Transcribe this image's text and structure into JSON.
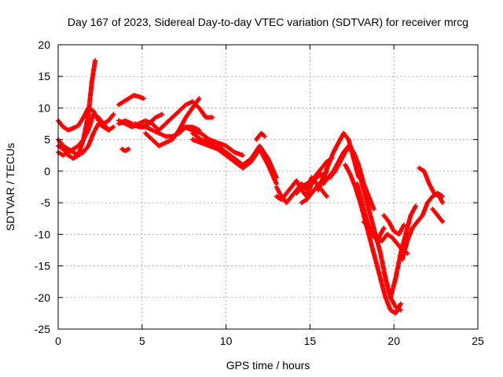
{
  "chart_data": {
    "type": "scatter",
    "title": "Day 167 of 2023, Sidereal Day-to-day VTEC variation (SDTVAR) for receiver mrcg",
    "xlabel": "GPS time / hours",
    "ylabel": "SDTVAR / TECUs",
    "xlim": [
      0,
      25
    ],
    "ylim": [
      -25,
      20
    ],
    "xticks": [
      "0",
      "5",
      "10",
      "15",
      "20",
      "25"
    ],
    "yticks": [
      "20",
      "15",
      "10",
      "5",
      "0",
      "-5",
      "-10",
      "-15",
      "-20",
      "-25"
    ],
    "grid": true,
    "marker": "plus",
    "color": "#ff0000",
    "series": [
      {
        "x": [
          0,
          0.3,
          0.6,
          0.9,
          1.2,
          1.5,
          1.8,
          2.1,
          2.4,
          2.7,
          3.0,
          3.3
        ],
        "y": [
          8,
          7,
          6.5,
          6.8,
          7.2,
          8.5,
          10,
          9.5,
          8,
          7.5,
          8,
          9
        ]
      },
      {
        "x": [
          0,
          0.3,
          0.6,
          0.9,
          1.2,
          1.5,
          1.8,
          2.0,
          2.2
        ],
        "y": [
          4,
          3.5,
          2.5,
          2,
          2.5,
          5,
          9,
          14,
          17.5
        ]
      },
      {
        "x": [
          0,
          0.3,
          0.6,
          0.9,
          1.2,
          1.5,
          1.8,
          2.1,
          2.4,
          2.7,
          3.0,
          3.3
        ],
        "y": [
          5,
          4,
          3.5,
          3,
          2.5,
          3,
          4,
          6,
          7.5,
          7,
          6.5,
          7
        ]
      },
      {
        "x": [
          0,
          0.3,
          0.6,
          0.9,
          1.2,
          1.5,
          1.8,
          2.1,
          2.4,
          2.7,
          3.0
        ],
        "y": [
          3,
          2.5,
          3,
          3.5,
          4,
          5,
          6.5,
          9,
          8.5,
          7.5,
          6.5
        ]
      },
      {
        "x": [
          3.8,
          4.0,
          4.2
        ],
        "y": [
          3.5,
          3.2,
          3.5
        ]
      },
      {
        "x": [
          3.6,
          3.9,
          4.2,
          4.5,
          4.8,
          5.1
        ],
        "y": [
          10.5,
          11,
          11.5,
          12,
          11.8,
          11.5
        ]
      },
      {
        "x": [
          3.6,
          4.0,
          4.4,
          4.8,
          5.2,
          5.6,
          6.0,
          6.4,
          6.8,
          7.2,
          7.6,
          8.0,
          8.4
        ],
        "y": [
          7.5,
          8,
          7.5,
          7,
          7,
          6.5,
          6,
          5.5,
          5.5,
          6,
          7,
          7,
          6.5
        ]
      },
      {
        "x": [
          3.6,
          4.0,
          4.4,
          4.8,
          5.2,
          5.6,
          6.0,
          6.4,
          6.8,
          7.2,
          7.6,
          8.0,
          8.4,
          8.8,
          9.2
        ],
        "y": [
          8,
          7.5,
          7,
          7.5,
          8,
          7.5,
          6.5,
          7.5,
          8.5,
          9.5,
          10.5,
          11,
          10,
          8.5,
          8.5
        ]
      },
      {
        "x": [
          5.2,
          5.6,
          6.0,
          6.4,
          6.8,
          7.2,
          7.6,
          8.0,
          8.4
        ],
        "y": [
          6,
          5,
          4,
          4.5,
          5,
          6.5,
          8.5,
          10,
          11.5
        ]
      },
      {
        "x": [
          4.6,
          5.0,
          5.4,
          5.8,
          6.2
        ],
        "y": [
          7.5,
          7,
          7.5,
          8.5,
          9
        ]
      },
      {
        "x": [
          8,
          8.5,
          9,
          9.5,
          10,
          10.5,
          11,
          11.5,
          12,
          12.5,
          13
        ],
        "y": [
          6,
          5,
          4.5,
          4,
          3,
          2,
          1,
          2,
          4,
          2,
          -1
        ]
      },
      {
        "x": [
          8,
          8.5,
          9,
          9.5,
          10,
          10.5,
          11,
          11.5,
          12,
          12.5,
          13
        ],
        "y": [
          5,
          4.5,
          4,
          3.5,
          2.5,
          1.5,
          0.5,
          1.5,
          3.5,
          1,
          -2
        ]
      },
      {
        "x": [
          7.5,
          8,
          8.5,
          9,
          9.5,
          10,
          10.5,
          11
        ],
        "y": [
          7,
          6.5,
          6,
          5,
          4.5,
          4,
          3,
          2.5
        ]
      },
      {
        "x": [
          11.8,
          12.1,
          12.3
        ],
        "y": [
          5,
          6,
          5.5
        ]
      },
      {
        "x": [
          13,
          13.3,
          13.6,
          13.9,
          14.2,
          14.5,
          14.8,
          15.1,
          15.4,
          15.7,
          16.0
        ],
        "y": [
          -2.5,
          -4,
          -5,
          -4,
          -3,
          -2,
          -3,
          -1,
          -2,
          -3,
          -4
        ]
      },
      {
        "x": [
          13,
          13.3,
          13.6,
          13.9,
          14.2,
          14.5,
          14.8,
          15.1,
          15.4,
          15.7,
          16.0
        ],
        "y": [
          -4,
          -4.5,
          -3.5,
          -2.5,
          -1.5,
          -3,
          -4,
          -2,
          -1,
          -0.5,
          -1
        ]
      },
      {
        "x": [
          14.2,
          14.5,
          14.8,
          15.1,
          15.4,
          15.7,
          16.0,
          16.3
        ],
        "y": [
          -3.5,
          -2.5,
          -2,
          -1.5,
          -0.5,
          0.5,
          1.5,
          2
        ]
      },
      {
        "x": [
          14.5,
          14.8,
          15.1,
          15.4,
          15.7,
          16.0
        ],
        "y": [
          -5,
          -4.5,
          -3.5,
          -2.5,
          -1.5,
          0
        ]
      },
      {
        "x": [
          15.5,
          15.8,
          16.1,
          16.4,
          16.7,
          17.0,
          17.3,
          17.6,
          17.9
        ],
        "y": [
          -3,
          -1,
          1,
          3,
          4.5,
          6,
          5,
          2,
          -1
        ]
      },
      {
        "x": [
          15.8,
          16.1,
          16.4,
          16.7,
          17.0,
          17.3,
          17.6,
          17.9,
          18.2,
          18.5,
          18.8
        ],
        "y": [
          -2,
          -1,
          0,
          1.5,
          3,
          4,
          3,
          1,
          -2,
          -4,
          -6
        ]
      },
      {
        "x": [
          16.2,
          16.5,
          16.8,
          17.1,
          17.4,
          17.7,
          18.0,
          18.3,
          18.6,
          18.9,
          19.2,
          19.5,
          19.8,
          20.1,
          20.4
        ],
        "y": [
          -1,
          0,
          1.5,
          3,
          4,
          2,
          -1,
          -4,
          -7,
          -10,
          -13,
          -17,
          -20,
          -21.5,
          -22
        ]
      },
      {
        "x": [
          17.1,
          17.4,
          17.7,
          18.0,
          18.3,
          18.6,
          18.9,
          19.2,
          19.5,
          19.8,
          20.1,
          20.4
        ],
        "y": [
          1,
          -0.5,
          -2.5,
          -5,
          -8,
          -11,
          -14,
          -17,
          -20,
          -22,
          -22.5,
          -21
        ]
      },
      {
        "x": [
          17.8,
          18.1,
          18.4,
          18.7,
          19.0,
          19.3,
          19.6,
          19.9,
          20.2,
          20.5,
          20.8
        ],
        "y": [
          -2,
          -5,
          -8,
          -10,
          -11,
          -11,
          -10,
          -10.5,
          -11.5,
          -12.5,
          -13
        ]
      },
      {
        "x": [
          18.2,
          18.5,
          18.8,
          19.1,
          19.4
        ],
        "y": [
          -8,
          -9,
          -10,
          -10.5,
          -9
        ]
      },
      {
        "x": [
          19.4,
          19.7,
          20.0,
          20.3,
          20.6
        ],
        "y": [
          -7,
          -8,
          -9.5,
          -10,
          -8.5
        ]
      },
      {
        "x": [
          19.8,
          20.1,
          20.4,
          20.7,
          21.0,
          21.3
        ],
        "y": [
          -20,
          -17,
          -13,
          -10,
          -7,
          -5.5
        ]
      },
      {
        "x": [
          20.5,
          20.8,
          21.1,
          21.4,
          21.7,
          22.0,
          22.3,
          22.6,
          22.9
        ],
        "y": [
          -14,
          -11,
          -9,
          -8,
          -7,
          -5,
          -4,
          -3.5,
          -4
        ]
      },
      {
        "x": [
          21.5,
          21.8,
          22.1,
          22.4,
          22.7,
          22.9
        ],
        "y": [
          0.5,
          0,
          -2,
          -3.5,
          -4,
          -5
        ]
      },
      {
        "x": [
          22.3,
          22.6,
          22.9
        ],
        "y": [
          -6,
          -7,
          -8
        ]
      }
    ]
  }
}
